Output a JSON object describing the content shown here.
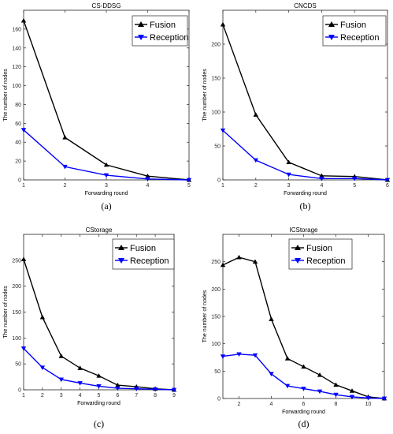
{
  "colors": {
    "fusion": "#000000",
    "reception": "#0000ff",
    "axis": "#262626",
    "tick_text": "#262626"
  },
  "chart_data": [
    {
      "type": "line",
      "title": "CS-DDSG",
      "xlabel": "Forwarding round",
      "ylabel": "The number of nodes",
      "panel_label": "(a)",
      "xlim": [
        1,
        5
      ],
      "ylim": [
        0,
        180
      ],
      "xticks": [
        1,
        2,
        3,
        4,
        5
      ],
      "yticks": [
        0,
        20,
        40,
        60,
        80,
        100,
        120,
        140,
        160
      ],
      "grid": false,
      "legend_position": "top-right",
      "x": [
        1,
        2,
        3,
        4,
        5
      ],
      "series": [
        {
          "name": "Fusion",
          "marker": "triangle-up",
          "values": [
            169,
            45,
            16,
            4,
            0
          ]
        },
        {
          "name": "Reception",
          "marker": "triangle-down",
          "values": [
            53,
            14,
            5,
            1,
            0
          ]
        }
      ]
    },
    {
      "type": "line",
      "title": "CNCDS",
      "xlabel": "Forwarding round",
      "ylabel": "The number of nodes",
      "panel_label": "(b)",
      "xlim": [
        1,
        6
      ],
      "ylim": [
        0,
        250
      ],
      "xticks": [
        1,
        2,
        3,
        4,
        5,
        6
      ],
      "yticks": [
        0,
        50,
        100,
        150,
        200
      ],
      "grid": false,
      "legend_position": "top-right",
      "x": [
        1,
        2,
        3,
        4,
        5,
        6
      ],
      "series": [
        {
          "name": "Fusion",
          "marker": "triangle-up",
          "values": [
            229,
            96,
            26,
            6,
            5,
            0
          ]
        },
        {
          "name": "Reception",
          "marker": "triangle-down",
          "values": [
            73,
            29,
            8,
            2,
            2,
            0
          ]
        }
      ]
    },
    {
      "type": "line",
      "title": "CStorage",
      "xlabel": "Forwarding round",
      "ylabel": "The number of nodes",
      "panel_label": "(c)",
      "xlim": [
        1,
        9
      ],
      "ylim": [
        0,
        300
      ],
      "xticks": [
        1,
        2,
        3,
        4,
        5,
        6,
        7,
        8,
        9
      ],
      "yticks": [
        0,
        50,
        100,
        150,
        200,
        250
      ],
      "grid": false,
      "legend_position": "top-right",
      "x": [
        1,
        2,
        3,
        4,
        5,
        6,
        7,
        8,
        9
      ],
      "series": [
        {
          "name": "Fusion",
          "marker": "triangle-up",
          "values": [
            252,
            140,
            65,
            42,
            27,
            9,
            6,
            2,
            0
          ]
        },
        {
          "name": "Reception",
          "marker": "triangle-down",
          "values": [
            80,
            43,
            20,
            13,
            7,
            3,
            2,
            1,
            0
          ]
        }
      ]
    },
    {
      "type": "line",
      "title": "ICStorage",
      "xlabel": "Forwarding round",
      "ylabel": "The number of nodes",
      "panel_label": "(d)",
      "xlim": [
        1,
        11
      ],
      "ylim": [
        0,
        300
      ],
      "xticks": [
        2,
        4,
        6,
        8,
        10
      ],
      "yticks": [
        0,
        50,
        100,
        150,
        200,
        250
      ],
      "grid": false,
      "legend_position": "top-left",
      "x": [
        1,
        2,
        3,
        4,
        5,
        6,
        7,
        8,
        9,
        10,
        11
      ],
      "series": [
        {
          "name": "Fusion",
          "marker": "triangle-up",
          "values": [
            244,
            258,
            250,
            145,
            73,
            58,
            43,
            25,
            14,
            3,
            0
          ]
        },
        {
          "name": "Reception",
          "marker": "triangle-down",
          "values": [
            77,
            81,
            79,
            45,
            23,
            18,
            13,
            7,
            3,
            1,
            0
          ]
        }
      ]
    }
  ]
}
